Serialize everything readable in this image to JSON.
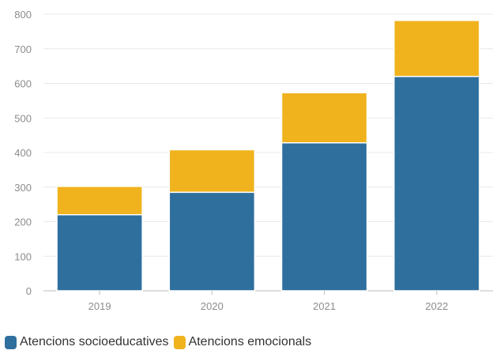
{
  "chart_data": {
    "type": "bar",
    "stacked": true,
    "categories": [
      "2019",
      "2020",
      "2021",
      "2022"
    ],
    "series": [
      {
        "name": "Atencions socioeducatives",
        "color": "#2f6f9e",
        "values": [
          220,
          285,
          428,
          620
        ]
      },
      {
        "name": "Atencions emocionals",
        "color": "#f0b31e",
        "values": [
          82,
          123,
          145,
          162
        ]
      }
    ],
    "title": "",
    "xlabel": "",
    "ylabel": "",
    "ylim": [
      0,
      800
    ],
    "yticks": [
      "0",
      "100",
      "200",
      "300",
      "400",
      "500",
      "600",
      "700",
      "800"
    ],
    "grid": true,
    "legend": "bottom-left"
  }
}
